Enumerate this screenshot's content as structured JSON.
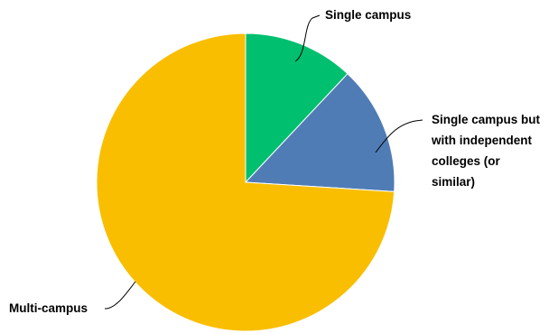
{
  "chart_data": {
    "type": "pie",
    "title": "",
    "slices": [
      {
        "label": "Single campus",
        "value": 12,
        "color": "#00BF6F"
      },
      {
        "label": "Single campus but with independent colleges (or similar)",
        "value": 14,
        "color": "#507CB6"
      },
      {
        "label": "Multi-campus",
        "value": 74,
        "color": "#F9BE00"
      }
    ],
    "legend": "none"
  },
  "labels": {
    "single_campus": [
      "Single campus"
    ],
    "independent_colleges": [
      "Single campus but",
      "with independent",
      "colleges (or",
      "similar)"
    ],
    "multi_campus": [
      "Multi-campus"
    ]
  }
}
